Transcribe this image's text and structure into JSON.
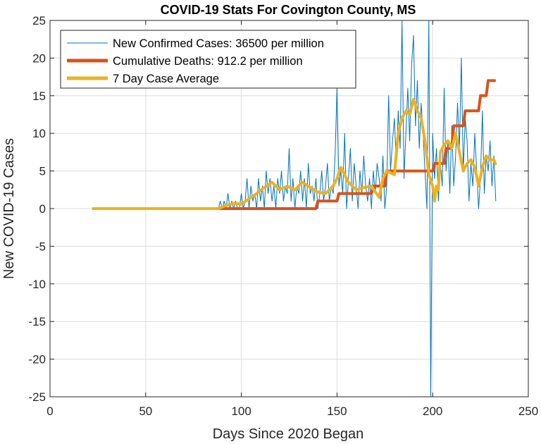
{
  "chart_data": {
    "type": "line",
    "title": "COVID-19 Stats For Covington County, MS",
    "xlabel": "Days Since 2020 Began",
    "ylabel": "New COVID-19 Cases",
    "xlim": [
      0,
      250
    ],
    "ylim": [
      -25,
      25
    ],
    "xticks": [
      0,
      50,
      100,
      150,
      200,
      250
    ],
    "yticks": [
      25,
      20,
      15,
      10,
      5,
      0,
      -5,
      -10,
      -15,
      -20,
      -25
    ],
    "grid": true,
    "legend_position": "top-left",
    "series": [
      {
        "name": "New Confirmed Cases: 36500 per million",
        "color": "#0072BD",
        "line_width": 1,
        "x": [
          22,
          60,
          88,
          89,
          90,
          91,
          92,
          93,
          94,
          95,
          96,
          97,
          98,
          99,
          100,
          101,
          102,
          103,
          104,
          105,
          106,
          107,
          108,
          109,
          110,
          111,
          112,
          113,
          114,
          115,
          116,
          117,
          118,
          119,
          120,
          121,
          122,
          123,
          124,
          125,
          126,
          127,
          128,
          129,
          130,
          131,
          132,
          133,
          134,
          135,
          136,
          137,
          138,
          139,
          140,
          141,
          142,
          143,
          144,
          145,
          146,
          147,
          148,
          149,
          150,
          151,
          152,
          153,
          154,
          155,
          156,
          157,
          158,
          159,
          160,
          161,
          162,
          163,
          164,
          165,
          166,
          167,
          168,
          169,
          170,
          171,
          172,
          173,
          174,
          175,
          176,
          177,
          178,
          179,
          180,
          181,
          182,
          183,
          184,
          185,
          186,
          187,
          188,
          189,
          190,
          191,
          192,
          193,
          194,
          195,
          196,
          197,
          198,
          199,
          200,
          201,
          202,
          203,
          204,
          205,
          206,
          207,
          208,
          209,
          210,
          211,
          212,
          213,
          214,
          215,
          216,
          217,
          218,
          219,
          220,
          221,
          222,
          223,
          224,
          225,
          226,
          227,
          228,
          229,
          230,
          231,
          232,
          233
        ],
        "y": [
          0,
          0,
          0,
          1,
          0,
          1,
          0,
          2,
          0,
          1,
          0,
          1,
          0,
          0,
          2,
          0,
          1,
          4,
          0,
          3,
          1,
          2,
          0,
          4,
          1,
          3,
          0,
          5,
          2,
          4,
          1,
          3,
          0,
          4,
          2,
          5,
          1,
          3,
          2,
          8,
          1,
          4,
          0,
          3,
          2,
          5,
          1,
          4,
          0,
          6,
          2,
          3,
          1,
          4,
          0,
          2,
          5,
          1,
          3,
          6,
          1,
          3,
          2,
          7,
          16,
          3,
          5,
          2,
          10,
          0,
          4,
          8,
          1,
          6,
          3,
          0,
          5,
          2,
          7,
          3,
          1,
          4,
          0,
          5,
          2,
          6,
          4,
          1,
          7,
          0,
          3,
          15,
          5,
          9,
          12,
          6,
          13,
          8,
          25,
          4,
          10,
          16,
          9,
          19,
          23,
          11,
          17,
          8,
          14,
          10,
          5,
          0,
          25,
          -25,
          10,
          4,
          8,
          1,
          6,
          3,
          16,
          5,
          9,
          2,
          11,
          3,
          7,
          14,
          8,
          20,
          5,
          12,
          9,
          1,
          6,
          3,
          10,
          5,
          0,
          4,
          13,
          2,
          7,
          5,
          9,
          3,
          7,
          1
        ],
        "note": "approximate reading of the daily series"
      },
      {
        "name": "Cumulative Deaths: 912.2 per million",
        "color": "#D95319",
        "line_width": 4,
        "x": [
          88,
          139,
          140,
          150,
          151,
          168,
          169,
          175,
          176,
          200,
          201,
          206,
          207,
          210,
          211,
          216,
          217,
          224,
          225,
          228,
          229,
          233
        ],
        "y": [
          0,
          0,
          1,
          1,
          2,
          2,
          3,
          3,
          5,
          5,
          6,
          6,
          8,
          8,
          11,
          11,
          13,
          13,
          15,
          15,
          17,
          17
        ]
      },
      {
        "name": "7 Day Case Average",
        "color": "#EDB120",
        "line_width": 4,
        "x": [
          22,
          60,
          88,
          92,
          96,
          100,
          104,
          108,
          112,
          116,
          120,
          124,
          128,
          132,
          136,
          140,
          144,
          148,
          150,
          152,
          154,
          156,
          160,
          164,
          168,
          172,
          174,
          176,
          180,
          182,
          184,
          186,
          188,
          190,
          192,
          194,
          196,
          198,
          200,
          201,
          202,
          203,
          204,
          206,
          208,
          210,
          212,
          214,
          216,
          218,
          220,
          222,
          224,
          226,
          228,
          230,
          232,
          233
        ],
        "y": [
          0,
          0,
          0,
          0.4,
          0.7,
          0.6,
          1.3,
          2,
          2.8,
          3.5,
          2.5,
          3,
          2.5,
          3.5,
          2.8,
          2.2,
          2,
          3,
          4,
          5.5,
          4.5,
          3.5,
          2.5,
          2.8,
          3,
          1.5,
          4,
          5,
          4.5,
          10,
          12,
          13,
          12.5,
          14.5,
          13,
          12,
          9,
          4.5,
          3,
          1,
          3,
          2.5,
          7.5,
          8.5,
          9,
          8,
          10,
          7.5,
          5,
          6,
          6.5,
          5.5,
          3,
          5.5,
          7,
          6.5,
          6.5,
          5.8
        ]
      }
    ]
  }
}
